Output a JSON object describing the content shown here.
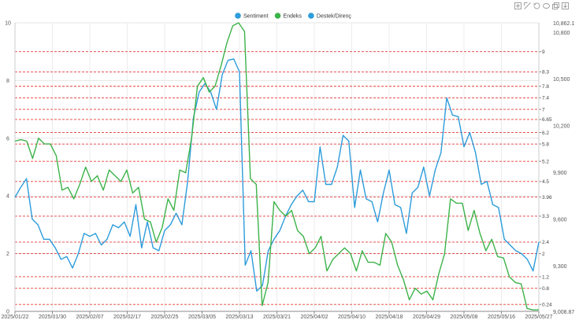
{
  "chart_data": {
    "type": "line",
    "legend": {
      "placement": "top-center",
      "items": [
        {
          "label": "Sentiment",
          "color": "#2d9cdb"
        },
        {
          "label": "Endeks",
          "color": "#3cb34a"
        },
        {
          "label": "Destek/Direnç",
          "color": "#2d9cdb"
        }
      ]
    },
    "toolbox_icons": [
      "zoom-icon",
      "zoom-reset-icon",
      "restore-icon",
      "lasso-icon",
      "copy-icon",
      "save-icon"
    ],
    "x_labels": [
      "2025/01/22",
      "2025/01/30",
      "2025/02/07",
      "2025/02/17",
      "2025/02/25",
      "2025/03/05",
      "2025/03/13",
      "2025/03/21",
      "2025/04/02",
      "2025/04/10",
      "2025/04/18",
      "2025/04/29",
      "2025/05/08",
      "2025/05/16",
      "2025/05/27"
    ],
    "y_left": {
      "min": 0,
      "max": 10,
      "ticks": [
        "0",
        "2",
        "4",
        "6",
        "8",
        "10"
      ]
    },
    "y_right": {
      "min": 9008.87,
      "max": 10862.1,
      "ticks": [
        "9,008.87",
        "9,300",
        "9,600",
        "9,900",
        "10,200",
        "10,500",
        "10,800",
        "10,862.1"
      ]
    },
    "levels": [
      "0.24",
      "0.8",
      "1.2",
      "2",
      "2.4",
      "3.3",
      "3.96",
      "4.5",
      "5.2",
      "5.8",
      "6.2",
      "6.65",
      "7",
      "7.4",
      "7.8",
      "8.3",
      "9"
    ],
    "level_values": [
      0.24,
      0.8,
      1.2,
      2,
      2.4,
      3.3,
      3.96,
      4.5,
      5.2,
      5.8,
      6.2,
      6.65,
      7,
      7.4,
      7.8,
      8.3,
      9
    ],
    "level_color": "#e53935",
    "series": [
      {
        "name": "Sentiment",
        "color": "#2d9cdb",
        "values": [
          3.95,
          4.3,
          4.6,
          3.2,
          3.0,
          2.5,
          2.5,
          2.2,
          1.8,
          1.9,
          1.5,
          2.0,
          2.7,
          2.6,
          2.7,
          2.3,
          2.5,
          3.0,
          2.9,
          3.1,
          2.6,
          3.7,
          2.2,
          3.1,
          2.2,
          2.1,
          2.8,
          3.0,
          3.4,
          3.0,
          4.5,
          6.7,
          7.6,
          7.9,
          7.6,
          7.0,
          8.2,
          8.7,
          8.75,
          8.3,
          1.6,
          2.1,
          0.7,
          0.9,
          2.1,
          2.5,
          2.8,
          3.3,
          3.7,
          4.0,
          4.2,
          3.8,
          3.8,
          5.7,
          4.4,
          4.4,
          5.0,
          6.1,
          5.9,
          3.6,
          4.9,
          3.9,
          3.8,
          3.1,
          4.1,
          4.9,
          3.7,
          3.6,
          2.7,
          4.1,
          4.3,
          5.0,
          4.0,
          4.9,
          5.5,
          7.4,
          6.8,
          6.75,
          5.7,
          6.2,
          5.5,
          4.4,
          4.5,
          3.7,
          3.6,
          2.5,
          2.3,
          2.1,
          2.0,
          1.8,
          1.4,
          2.4
        ]
      },
      {
        "name": "Endeks",
        "color": "#3cb34a",
        "values": [
          5.9,
          5.95,
          5.9,
          5.3,
          6.0,
          5.8,
          5.8,
          5.4,
          4.2,
          4.3,
          3.9,
          4.4,
          5.0,
          4.5,
          4.7,
          4.2,
          4.9,
          4.7,
          4.5,
          4.9,
          4.1,
          4.3,
          3.2,
          3.1,
          2.4,
          2.9,
          3.9,
          3.5,
          4.9,
          4.8,
          6.0,
          7.8,
          8.1,
          7.6,
          7.8,
          8.5,
          9.3,
          9.9,
          10.0,
          9.7,
          4.6,
          4.4,
          0.2,
          1.0,
          3.8,
          3.5,
          3.3,
          3.5,
          2.8,
          2.6,
          2.0,
          2.2,
          2.6,
          1.4,
          1.8,
          2.0,
          2.2,
          2.0,
          1.4,
          2.1,
          1.7,
          1.7,
          1.6,
          2.7,
          2.4,
          1.6,
          1.1,
          0.4,
          0.8,
          0.6,
          0.7,
          0.4,
          1.3,
          2.0,
          3.9,
          3.75,
          3.75,
          2.8,
          3.5,
          2.7,
          2.1,
          2.5,
          1.9,
          1.85,
          1.2,
          1.0,
          0.95,
          0.1,
          0.05,
          0.05
        ]
      }
    ]
  }
}
